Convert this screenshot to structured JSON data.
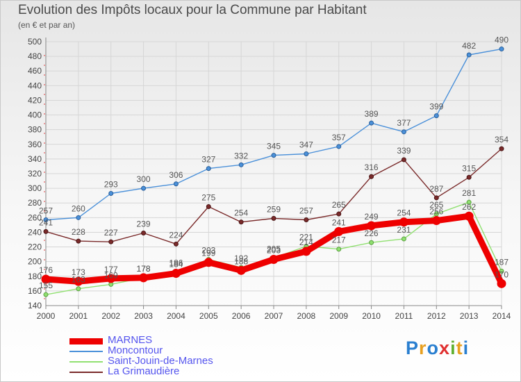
{
  "header": {
    "title": "Evolution des Impôts locaux pour la Commune par Habitant",
    "subtitle": "(en € et par an)"
  },
  "chart_data": {
    "type": "line",
    "title": "Evolution des Impôts locaux pour la Commune par Habitant",
    "subtitle": "(en € et par an)",
    "xlabel": "",
    "ylabel": "",
    "x": [
      "2000",
      "2001",
      "2002",
      "2003",
      "2004",
      "2005",
      "2006",
      "2007",
      "2008",
      "2009",
      "2010",
      "2011",
      "2012",
      "2013",
      "2014"
    ],
    "yticks": [
      140,
      160,
      180,
      200,
      220,
      240,
      260,
      280,
      300,
      320,
      340,
      360,
      380,
      400,
      420,
      440,
      460,
      480,
      500
    ],
    "ylim": [
      140,
      500
    ],
    "grid": true,
    "legend_position": "bottom-left",
    "series": [
      {
        "name": "MARNES",
        "color": "#ee0000",
        "values": [
          176,
          173,
          177,
          178,
          184,
          199,
          188,
          203,
          214,
          241,
          249,
          254,
          256,
          262,
          170
        ]
      },
      {
        "name": "Moncontour",
        "color": "#4a90d9",
        "values": [
          257,
          260,
          293,
          300,
          306,
          327,
          332,
          345,
          347,
          357,
          389,
          377,
          399,
          482,
          490
        ]
      },
      {
        "name": "Saint-Jouin-de-Marnes",
        "color": "#90e070",
        "values": [
          155,
          163,
          169,
          178,
          186,
          203,
          192,
          205,
          221,
          217,
          226,
          231,
          265,
          281,
          187
        ]
      },
      {
        "name": "La Grimaudière",
        "color": "#7a2a2a",
        "values": [
          241,
          228,
          227,
          239,
          224,
          275,
          254,
          259,
          257,
          265,
          316,
          339,
          287,
          315,
          354
        ]
      }
    ]
  },
  "logo": {
    "letters": [
      "P",
      "r",
      "o",
      "x",
      "i",
      "t",
      "i"
    ],
    "colors": [
      "#2a7fd0",
      "#e8a020",
      "#2a7fd0",
      "#e03030",
      "#60b030",
      "#e8a020",
      "#2a7fd0"
    ]
  }
}
